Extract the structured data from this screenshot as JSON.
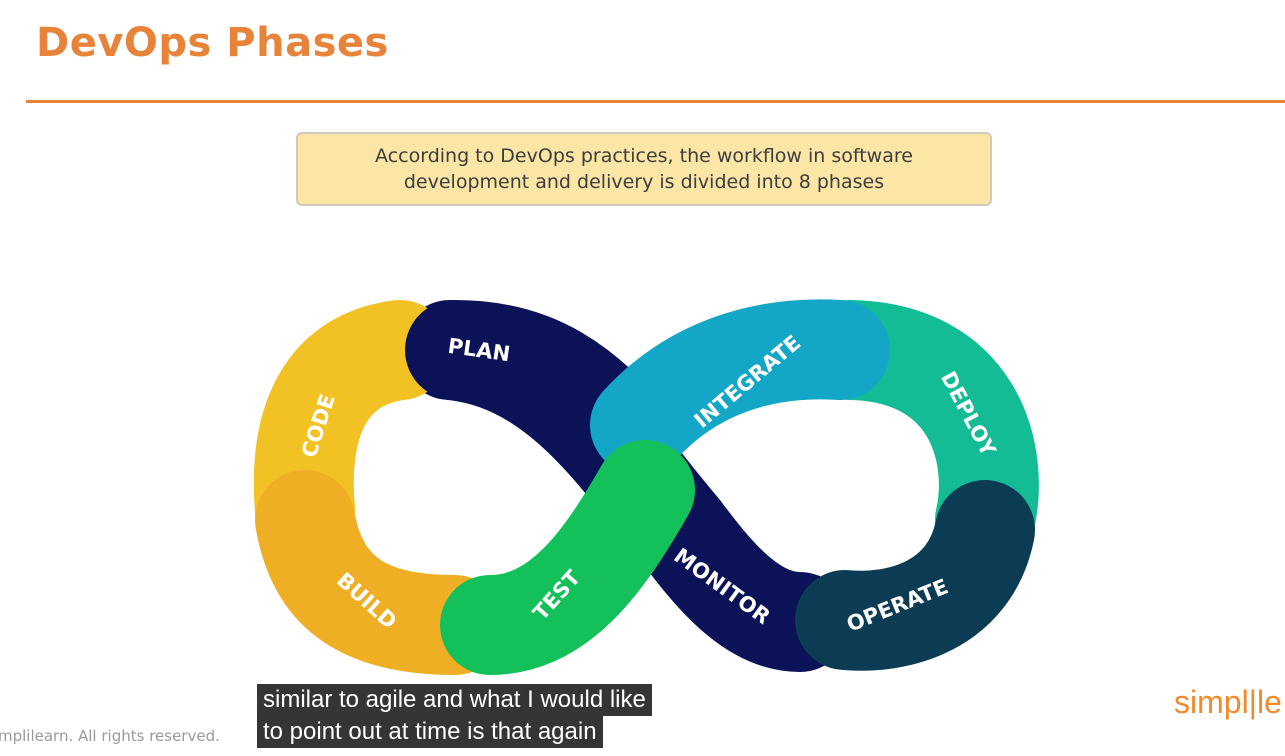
{
  "slide": {
    "title": "DevOps Phases",
    "callout": "According to DevOps practices, the workflow in software development and delivery is divided into 8 phases",
    "copyright": "mplilearn. All rights reserved."
  },
  "diagram": {
    "phases": [
      {
        "label": "PLAN",
        "color": "#0b1258"
      },
      {
        "label": "CODE",
        "color": "#f2c224"
      },
      {
        "label": "BUILD",
        "color": "#efaf24"
      },
      {
        "label": "TEST",
        "color": "#14c05a"
      },
      {
        "label": "INTEGRATE",
        "color": "#14a6c6"
      },
      {
        "label": "DEPLOY",
        "color": "#14bc96"
      },
      {
        "label": "OPERATE",
        "color": "#0c3b54"
      },
      {
        "label": "MONITOR",
        "color": "#0b1258"
      }
    ]
  },
  "caption": {
    "line1": "similar to agile and what I would like",
    "line2": "to point out at time is that again"
  },
  "logo": {
    "text": "simpl|le",
    "color": "#f08a2b"
  },
  "colors": {
    "accent": "#e8833a",
    "callout_bg": "#fbe6a6"
  }
}
